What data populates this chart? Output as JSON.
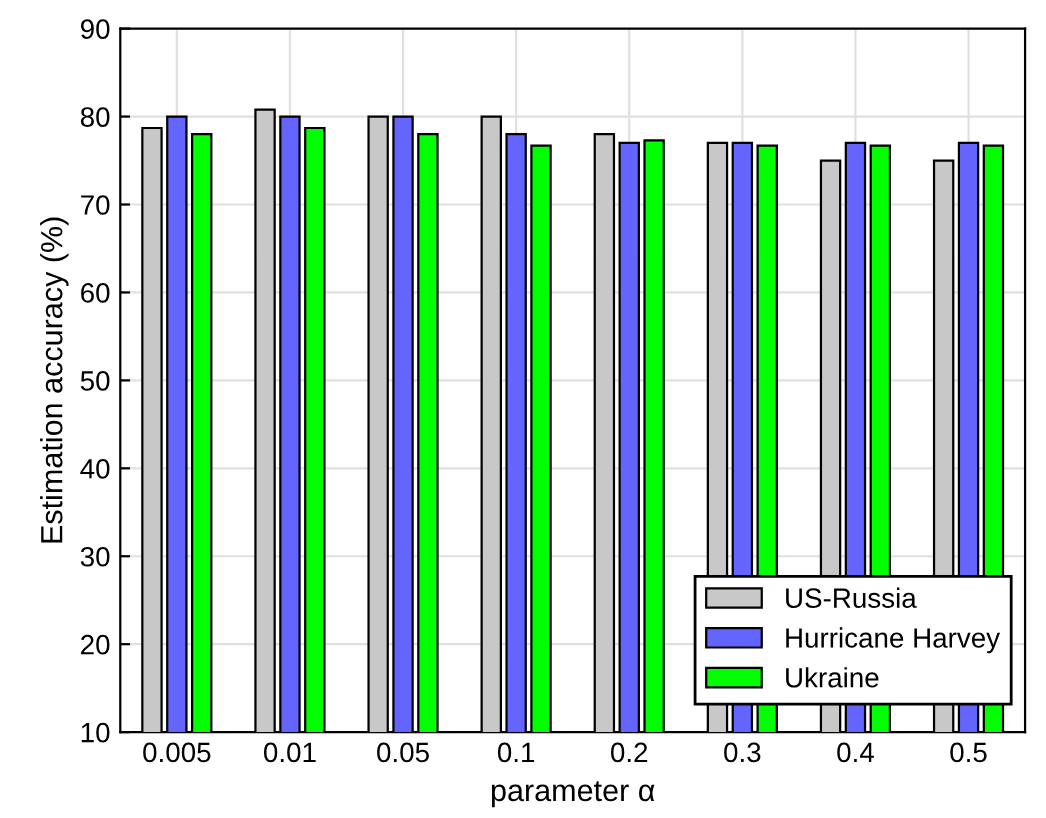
{
  "chart_data": {
    "type": "bar",
    "xlabel": "parameter α",
    "ylabel": "Estimation accuracy (%)",
    "categories": [
      "0.005",
      "0.01",
      "0.05",
      "0.1",
      "0.2",
      "0.3",
      "0.4",
      "0.5"
    ],
    "series": [
      {
        "name": "US-Russia",
        "color": "#c8c8c8",
        "values": [
          78.7,
          80.8,
          80,
          80,
          78,
          77,
          75,
          75
        ]
      },
      {
        "name": "Hurricane Harvey",
        "color": "#6464ff",
        "values": [
          80,
          80,
          80,
          78,
          77,
          77,
          77,
          77
        ]
      },
      {
        "name": "Ukraine",
        "color": "#00ff00",
        "values": [
          78,
          78.7,
          78,
          76.7,
          77.3,
          76.7,
          76.7,
          76.7
        ]
      }
    ],
    "ylim": [
      10,
      90
    ],
    "yticks": [
      10,
      20,
      30,
      40,
      50,
      60,
      70,
      80,
      90
    ],
    "grid": true,
    "legend": "bottom right"
  }
}
